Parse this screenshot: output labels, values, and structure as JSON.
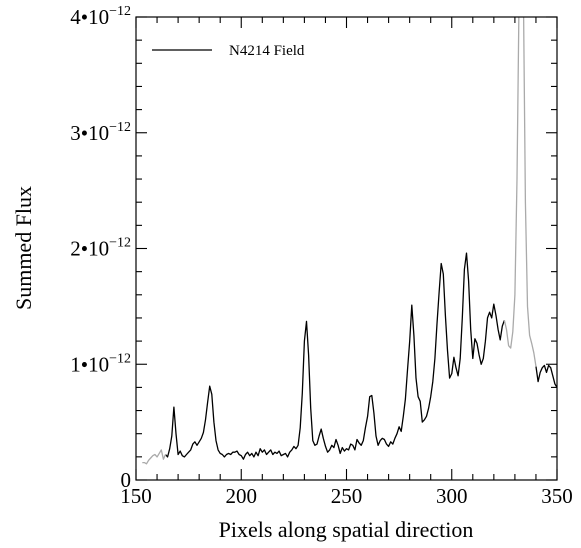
{
  "chart_data": {
    "type": "line",
    "title": "",
    "xlabel": "Pixels along spatial direction",
    "ylabel": "Summed Flux",
    "xlim": [
      150,
      350
    ],
    "ylim": [
      0,
      4e-12
    ],
    "x_ticks": [
      {
        "value": 150,
        "label": "150"
      },
      {
        "value": 200,
        "label": "200"
      },
      {
        "value": 250,
        "label": "250"
      },
      {
        "value": 300,
        "label": "300"
      },
      {
        "value": 350,
        "label": "350"
      }
    ],
    "y_ticks": [
      {
        "value": 0,
        "label": "0",
        "sup": ""
      },
      {
        "value": 1e-12,
        "label": "1•10",
        "sup": "−12"
      },
      {
        "value": 2e-12,
        "label": "2•10",
        "sup": "−12"
      },
      {
        "value": 3e-12,
        "label": "3•10",
        "sup": "−12"
      },
      {
        "value": 4e-12,
        "label": "4•10",
        "sup": "−12"
      }
    ],
    "grid": false,
    "legend_position": "top-left",
    "series": [
      {
        "name": "N4214 Field",
        "role": "fit-region",
        "color": "#000000",
        "points": [
          [
            164,
            2.2e-13
          ],
          [
            165,
            2e-13
          ],
          [
            166,
            2.7e-13
          ],
          [
            167,
            3.8e-13
          ],
          [
            168,
            6.3e-13
          ],
          [
            169,
            4e-13
          ],
          [
            170,
            2.2e-13
          ],
          [
            171,
            2.5e-13
          ],
          [
            172,
            2.1e-13
          ],
          [
            173,
            2e-13
          ],
          [
            174,
            2.2e-13
          ],
          [
            175,
            2.4e-13
          ],
          [
            176,
            2.6e-13
          ],
          [
            177,
            3.1e-13
          ],
          [
            178,
            3.3e-13
          ],
          [
            179,
            3e-13
          ],
          [
            180,
            3.3e-13
          ],
          [
            181,
            3.6e-13
          ],
          [
            182,
            4.1e-13
          ],
          [
            183,
            5.2e-13
          ],
          [
            184,
            6.7e-13
          ],
          [
            185,
            8.1e-13
          ],
          [
            186,
            7.4e-13
          ],
          [
            187,
            5e-13
          ],
          [
            188,
            3.4e-13
          ],
          [
            189,
            2.6e-13
          ],
          [
            190,
            2.3e-13
          ],
          [
            191,
            2.2e-13
          ],
          [
            192,
            2e-13
          ],
          [
            193,
            2.2e-13
          ],
          [
            194,
            2.3e-13
          ],
          [
            195,
            2.2e-13
          ],
          [
            196,
            2.4e-13
          ],
          [
            197,
            2.4e-13
          ],
          [
            198,
            2.5e-13
          ],
          [
            199,
            2.2e-13
          ],
          [
            200,
            2.1e-13
          ],
          [
            201,
            1.8e-13
          ],
          [
            202,
            2.2e-13
          ],
          [
            203,
            2.4e-13
          ],
          [
            204,
            2.1e-13
          ],
          [
            205,
            2.3e-13
          ],
          [
            206,
            2e-13
          ],
          [
            207,
            2.4e-13
          ],
          [
            208,
            2.1e-13
          ],
          [
            209,
            2.7e-13
          ],
          [
            210,
            2.4e-13
          ],
          [
            211,
            2.6e-13
          ],
          [
            212,
            2.2e-13
          ],
          [
            213,
            2.4e-13
          ],
          [
            214,
            2.6e-13
          ],
          [
            215,
            2.2e-13
          ],
          [
            216,
            2.4e-13
          ],
          [
            217,
            2.3e-13
          ],
          [
            218,
            2.5e-13
          ],
          [
            219,
            2.1e-13
          ],
          [
            220,
            2.2e-13
          ],
          [
            221,
            2.3e-13
          ],
          [
            222,
            2e-13
          ],
          [
            223,
            2.4e-13
          ],
          [
            224,
            2.6e-13
          ],
          [
            225,
            2.9e-13
          ],
          [
            226,
            2.7e-13
          ],
          [
            227,
            3e-13
          ],
          [
            228,
            4.5e-13
          ],
          [
            229,
            7.5e-13
          ],
          [
            230,
            1.2e-12
          ],
          [
            231,
            1.37e-12
          ],
          [
            232,
            1.08e-12
          ],
          [
            233,
            6.2e-13
          ],
          [
            234,
            3.4e-13
          ],
          [
            235,
            3e-13
          ],
          [
            236,
            3.1e-13
          ],
          [
            237,
            3.8e-13
          ],
          [
            238,
            4.4e-13
          ],
          [
            239,
            3.6e-13
          ],
          [
            240,
            2.9e-13
          ],
          [
            241,
            2.4e-13
          ],
          [
            242,
            2.6e-13
          ],
          [
            243,
            3e-13
          ],
          [
            244,
            2.8e-13
          ],
          [
            245,
            3.5e-13
          ],
          [
            246,
            3e-13
          ],
          [
            247,
            2.3e-13
          ],
          [
            248,
            2.8e-13
          ],
          [
            249,
            2.5e-13
          ],
          [
            250,
            2.7e-13
          ],
          [
            251,
            2.6e-13
          ],
          [
            252,
            3.1e-13
          ],
          [
            253,
            3e-13
          ],
          [
            254,
            2.6e-13
          ],
          [
            255,
            3.5e-13
          ],
          [
            256,
            3.2e-13
          ],
          [
            257,
            3e-13
          ],
          [
            258,
            3.4e-13
          ],
          [
            259,
            4.5e-13
          ],
          [
            260,
            5.5e-13
          ],
          [
            261,
            7.2e-13
          ],
          [
            262,
            7.3e-13
          ],
          [
            263,
            5.8e-13
          ],
          [
            264,
            3.8e-13
          ],
          [
            265,
            3e-13
          ],
          [
            266,
            3.4e-13
          ],
          [
            267,
            3.6e-13
          ],
          [
            268,
            3.5e-13
          ],
          [
            269,
            3.1e-13
          ],
          [
            270,
            2.9e-13
          ],
          [
            271,
            3.3e-13
          ],
          [
            272,
            3.1e-13
          ],
          [
            273,
            3.6e-13
          ],
          [
            274,
            4e-13
          ],
          [
            275,
            4.6e-13
          ],
          [
            276,
            4.2e-13
          ],
          [
            277,
            5.5e-13
          ],
          [
            278,
            7e-13
          ],
          [
            279,
            9.5e-13
          ],
          [
            280,
            1.2e-12
          ],
          [
            281,
            1.51e-12
          ],
          [
            282,
            1.25e-12
          ],
          [
            283,
            8.8e-13
          ],
          [
            284,
            7.2e-13
          ],
          [
            285,
            6.8e-13
          ],
          [
            286,
            5e-13
          ],
          [
            287,
            5.2e-13
          ],
          [
            288,
            5.5e-13
          ],
          [
            289,
            6.2e-13
          ],
          [
            290,
            7.2e-13
          ],
          [
            291,
            8.5e-13
          ],
          [
            292,
            1.05e-12
          ],
          [
            293,
            1.35e-12
          ],
          [
            294,
            1.62e-12
          ],
          [
            295,
            1.87e-12
          ],
          [
            296,
            1.78e-12
          ],
          [
            297,
            1.42e-12
          ],
          [
            298,
            1.12e-12
          ],
          [
            299,
            8.8e-13
          ],
          [
            300,
            9.2e-13
          ],
          [
            301,
            1.06e-12
          ],
          [
            302,
            9.7e-13
          ],
          [
            303,
            9e-13
          ],
          [
            304,
            1.05e-12
          ],
          [
            305,
            1.4e-12
          ],
          [
            306,
            1.82e-12
          ],
          [
            307,
            1.96e-12
          ],
          [
            308,
            1.72e-12
          ],
          [
            309,
            1.3e-12
          ],
          [
            310,
            1.05e-12
          ],
          [
            311,
            1.22e-12
          ],
          [
            312,
            1.18e-12
          ],
          [
            313,
            1.08e-12
          ],
          [
            314,
            1e-12
          ],
          [
            315,
            1.05e-12
          ],
          [
            316,
            1.2e-12
          ],
          [
            317,
            1.4e-12
          ],
          [
            318,
            1.45e-12
          ],
          [
            319,
            1.4e-12
          ],
          [
            320,
            1.52e-12
          ],
          [
            321,
            1.42e-12
          ],
          [
            322,
            1.3e-12
          ],
          [
            323,
            1.21e-12
          ],
          [
            324,
            1.33e-12
          ],
          [
            325,
            1.38e-12
          ]
        ]
      },
      {
        "name": "",
        "role": "excluded-left",
        "color": "#aaaaaa",
        "points": [
          [
            153,
            1.5e-13
          ],
          [
            154,
            1.5e-13
          ],
          [
            155,
            1.4e-13
          ],
          [
            156,
            1.7e-13
          ],
          [
            157,
            1.9e-13
          ],
          [
            158,
            2.1e-13
          ],
          [
            159,
            2.2e-13
          ],
          [
            160,
            2e-13
          ],
          [
            161,
            2.3e-13
          ],
          [
            162,
            2.6e-13
          ],
          [
            163,
            1.8e-13
          ],
          [
            164,
            2.2e-13
          ]
        ]
      },
      {
        "name": "",
        "role": "excluded-right",
        "color": "#aaaaaa",
        "points": [
          [
            325,
            1.38e-12
          ],
          [
            326,
            1.3e-12
          ],
          [
            327,
            1.16e-12
          ],
          [
            328,
            1.14e-12
          ],
          [
            329,
            1.28e-12
          ],
          [
            330,
            1.6e-12
          ],
          [
            331,
            2.6e-12
          ],
          [
            332,
            4.2e-12
          ],
          [
            333,
            4.6e-12
          ],
          [
            334,
            4.3e-12
          ],
          [
            335,
            2.4e-12
          ],
          [
            336,
            1.5e-12
          ],
          [
            337,
            1.25e-12
          ],
          [
            338,
            1.18e-12
          ],
          [
            339,
            1.1e-12
          ],
          [
            340,
            9.8e-13
          ]
        ]
      },
      {
        "name": "",
        "role": "fit-region-right",
        "color": "#000000",
        "points": [
          [
            340,
            9.8e-13
          ],
          [
            341,
            8.5e-13
          ],
          [
            342,
            9.3e-13
          ],
          [
            343,
            9.7e-13
          ],
          [
            344,
            9.9e-13
          ],
          [
            345,
            9.3e-13
          ],
          [
            346,
            9.9e-13
          ],
          [
            347,
            9.7e-13
          ],
          [
            348,
            9e-13
          ],
          [
            349,
            8.3e-13
          ],
          [
            350,
            8e-13
          ]
        ]
      }
    ]
  }
}
